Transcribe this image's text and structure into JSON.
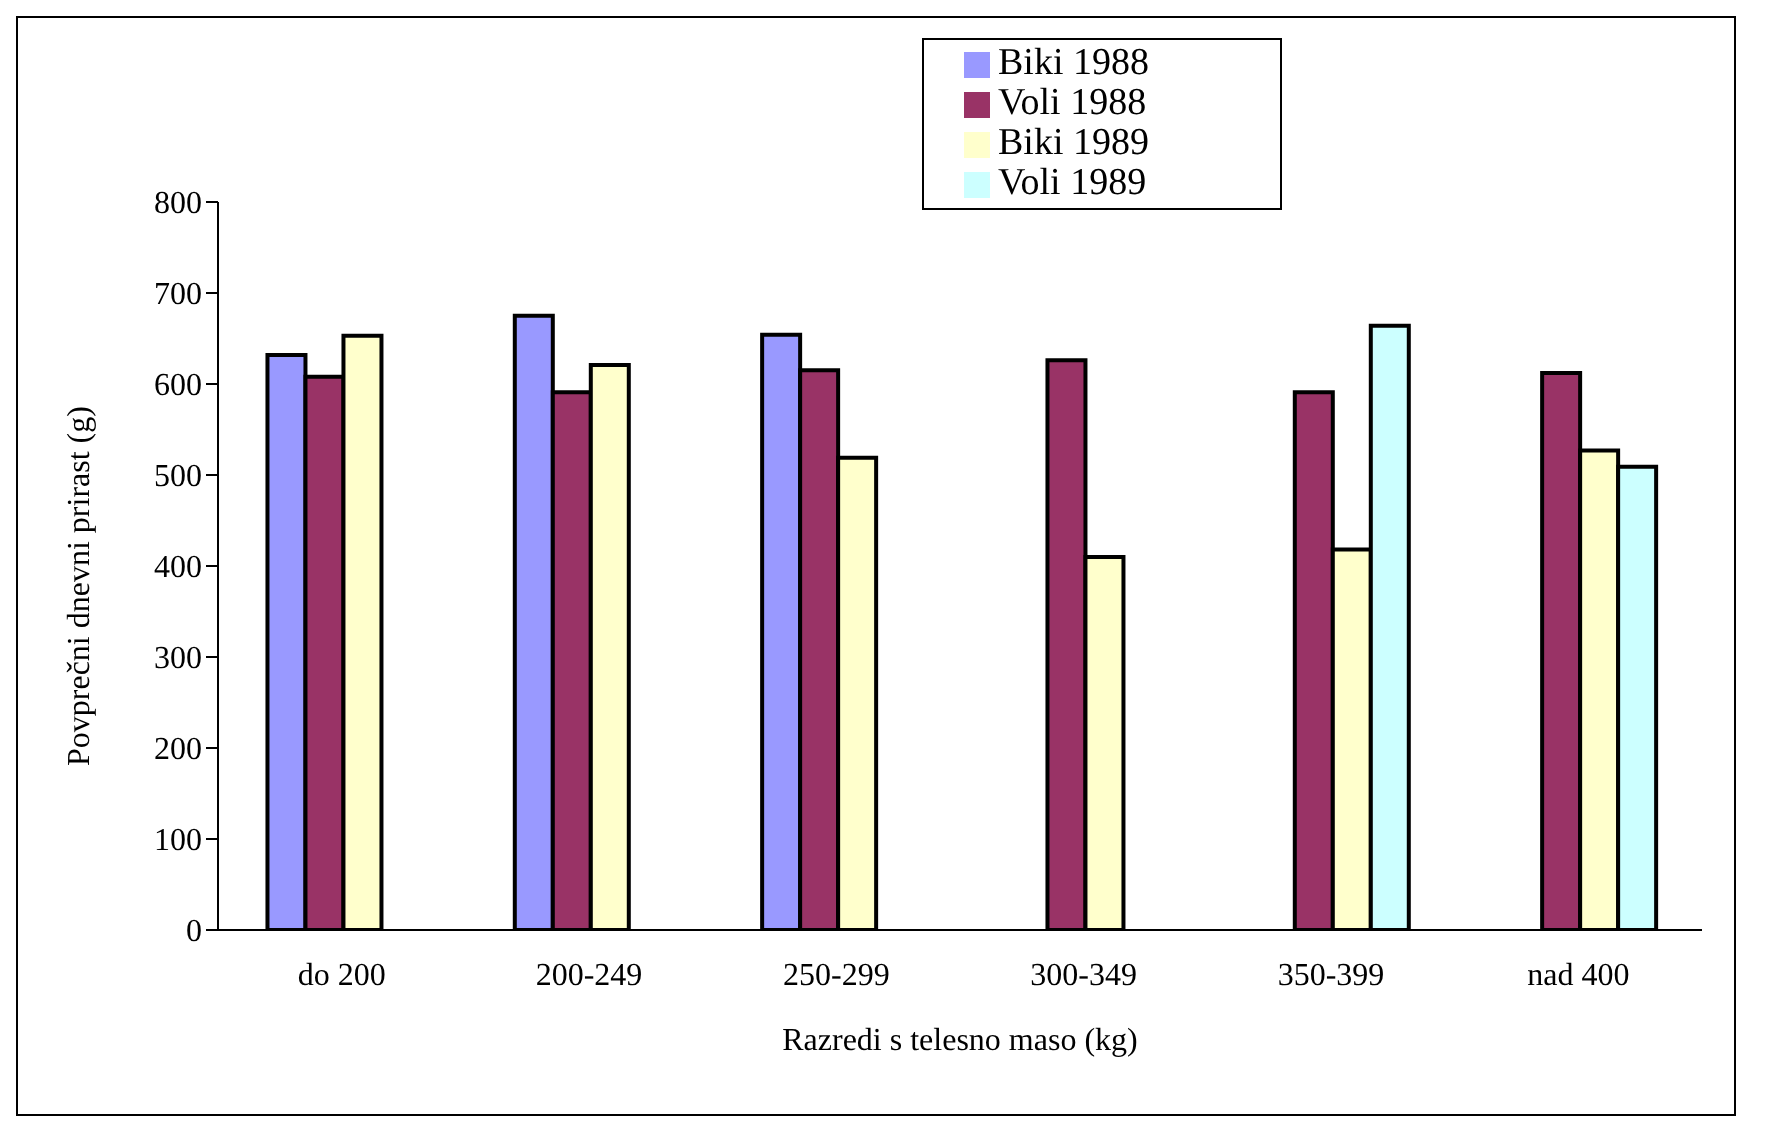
{
  "chart_data": {
    "type": "bar",
    "xlabel": "Razredi s telesno maso (kg)",
    "ylabel": "Povprečni dnevni prirast (g)",
    "categories": [
      "do 200",
      "200-249",
      "250-299",
      "300-349",
      "350-399",
      "nad 400"
    ],
    "series": [
      {
        "name": "Biki 1988",
        "color": "#9999ff",
        "values": [
          632,
          675,
          654,
          null,
          null,
          null
        ]
      },
      {
        "name": "Voli 1988",
        "color": "#993366",
        "values": [
          608,
          591,
          615,
          626,
          591,
          612
        ]
      },
      {
        "name": "Biki 1989",
        "color": "#ffffcc",
        "values": [
          653,
          621,
          519,
          410,
          418,
          527
        ]
      },
      {
        "name": "Voli 1989",
        "color": "#ccffff",
        "values": [
          null,
          null,
          null,
          null,
          664,
          509
        ]
      }
    ],
    "ylim": [
      0,
      800
    ],
    "yticks": [
      0,
      100,
      200,
      300,
      400,
      500,
      600,
      700,
      800
    ],
    "grid": false,
    "legend": "top"
  }
}
